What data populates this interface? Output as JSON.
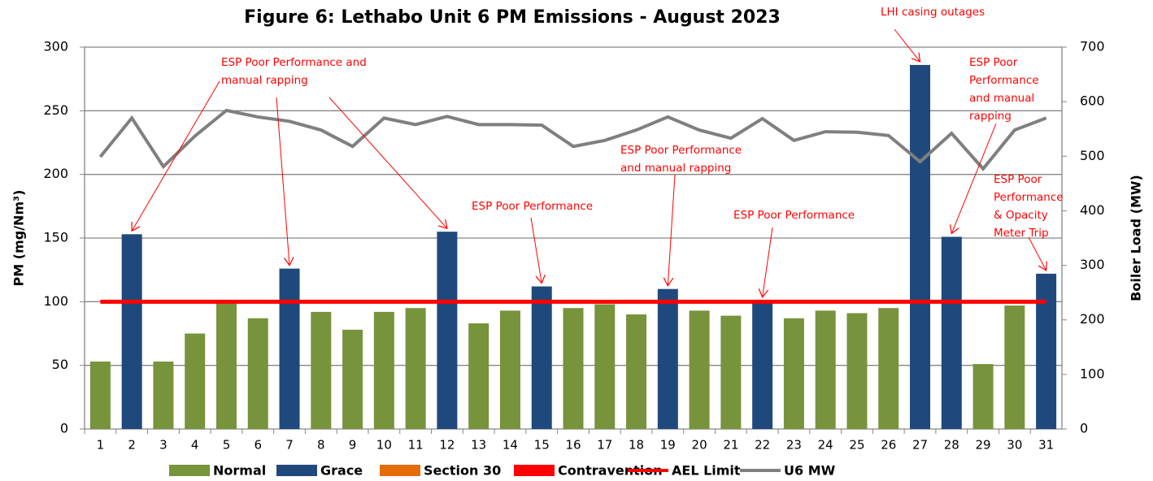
{
  "chart_data": {
    "type": "bar",
    "title": "Figure 6: Lethabo Unit 6 PM Emissions -  August 2023",
    "y_label": "PM (mg/Nm³)",
    "y2_label": "Boiler Load (MW)",
    "categories": [
      "1",
      "2",
      "3",
      "4",
      "5",
      "6",
      "7",
      "8",
      "9",
      "10",
      "11",
      "12",
      "13",
      "14",
      "15",
      "16",
      "17",
      "18",
      "19",
      "20",
      "21",
      "22",
      "23",
      "24",
      "25",
      "26",
      "27",
      "28",
      "29",
      "30",
      "31"
    ],
    "series": [
      {
        "name": "Normal",
        "type": "bar",
        "color": "#77933c",
        "values": [
          53,
          null,
          53,
          75,
          100,
          87,
          null,
          92,
          78,
          92,
          95,
          null,
          83,
          93,
          null,
          95,
          98,
          90,
          null,
          93,
          89,
          null,
          87,
          93,
          91,
          95,
          null,
          null,
          51,
          97,
          null
        ]
      },
      {
        "name": "Grace",
        "type": "bar",
        "color": "#1f497d",
        "values": [
          null,
          153,
          null,
          null,
          null,
          null,
          126,
          null,
          null,
          null,
          null,
          155,
          null,
          null,
          112,
          null,
          null,
          null,
          110,
          null,
          null,
          101,
          null,
          null,
          null,
          null,
          286,
          151,
          null,
          null,
          122
        ]
      },
      {
        "name": "Section 30",
        "type": "bar",
        "color": "#e46c0a",
        "values": [
          null,
          null,
          null,
          null,
          null,
          null,
          null,
          null,
          null,
          null,
          null,
          null,
          null,
          null,
          null,
          null,
          null,
          null,
          null,
          null,
          null,
          null,
          null,
          null,
          null,
          null,
          null,
          null,
          null,
          null,
          null
        ]
      },
      {
        "name": "Contravention",
        "type": "bar",
        "color": "#ff0000",
        "values": [
          null,
          null,
          null,
          null,
          null,
          null,
          null,
          null,
          null,
          null,
          null,
          null,
          null,
          null,
          null,
          null,
          null,
          null,
          null,
          null,
          null,
          null,
          null,
          null,
          null,
          null,
          null,
          null,
          null,
          null,
          null
        ]
      },
      {
        "name": "AEL Limit",
        "type": "line",
        "color": "#ff0000",
        "values": [
          100,
          100,
          100,
          100,
          100,
          100,
          100,
          100,
          100,
          100,
          100,
          100,
          100,
          100,
          100,
          100,
          100,
          100,
          100,
          100,
          100,
          100,
          100,
          100,
          100,
          100,
          100,
          100,
          100,
          100,
          100
        ]
      },
      {
        "name": "U6 MW",
        "type": "line",
        "axis": "y2",
        "color": "#7f7f7f",
        "values": [
          499,
          570,
          481,
          537,
          584,
          572,
          564,
          548,
          518,
          570,
          558,
          573,
          558,
          558,
          557,
          518,
          529,
          548,
          572,
          548,
          533,
          569,
          529,
          545,
          544,
          538,
          490,
          542,
          477,
          548,
          570
        ]
      }
    ],
    "ylim": [
      0,
      300
    ],
    "yticks": [
      0,
      50,
      100,
      150,
      200,
      250,
      300
    ],
    "y2lim": [
      0,
      700
    ],
    "y2ticks": [
      0,
      100,
      200,
      300,
      400,
      500,
      600,
      700
    ],
    "grid": true,
    "legend": "bottom",
    "annotations": [
      "ESP Poor Performance and manual rapping",
      "LHI casing outages",
      "ESP Poor Performance and manual rapping",
      "ESP Poor Performance",
      "ESP Poor Performance and manual rapping",
      "ESP Poor Performance",
      "ESP Poor Performance & Opacity Meter Trip"
    ]
  }
}
